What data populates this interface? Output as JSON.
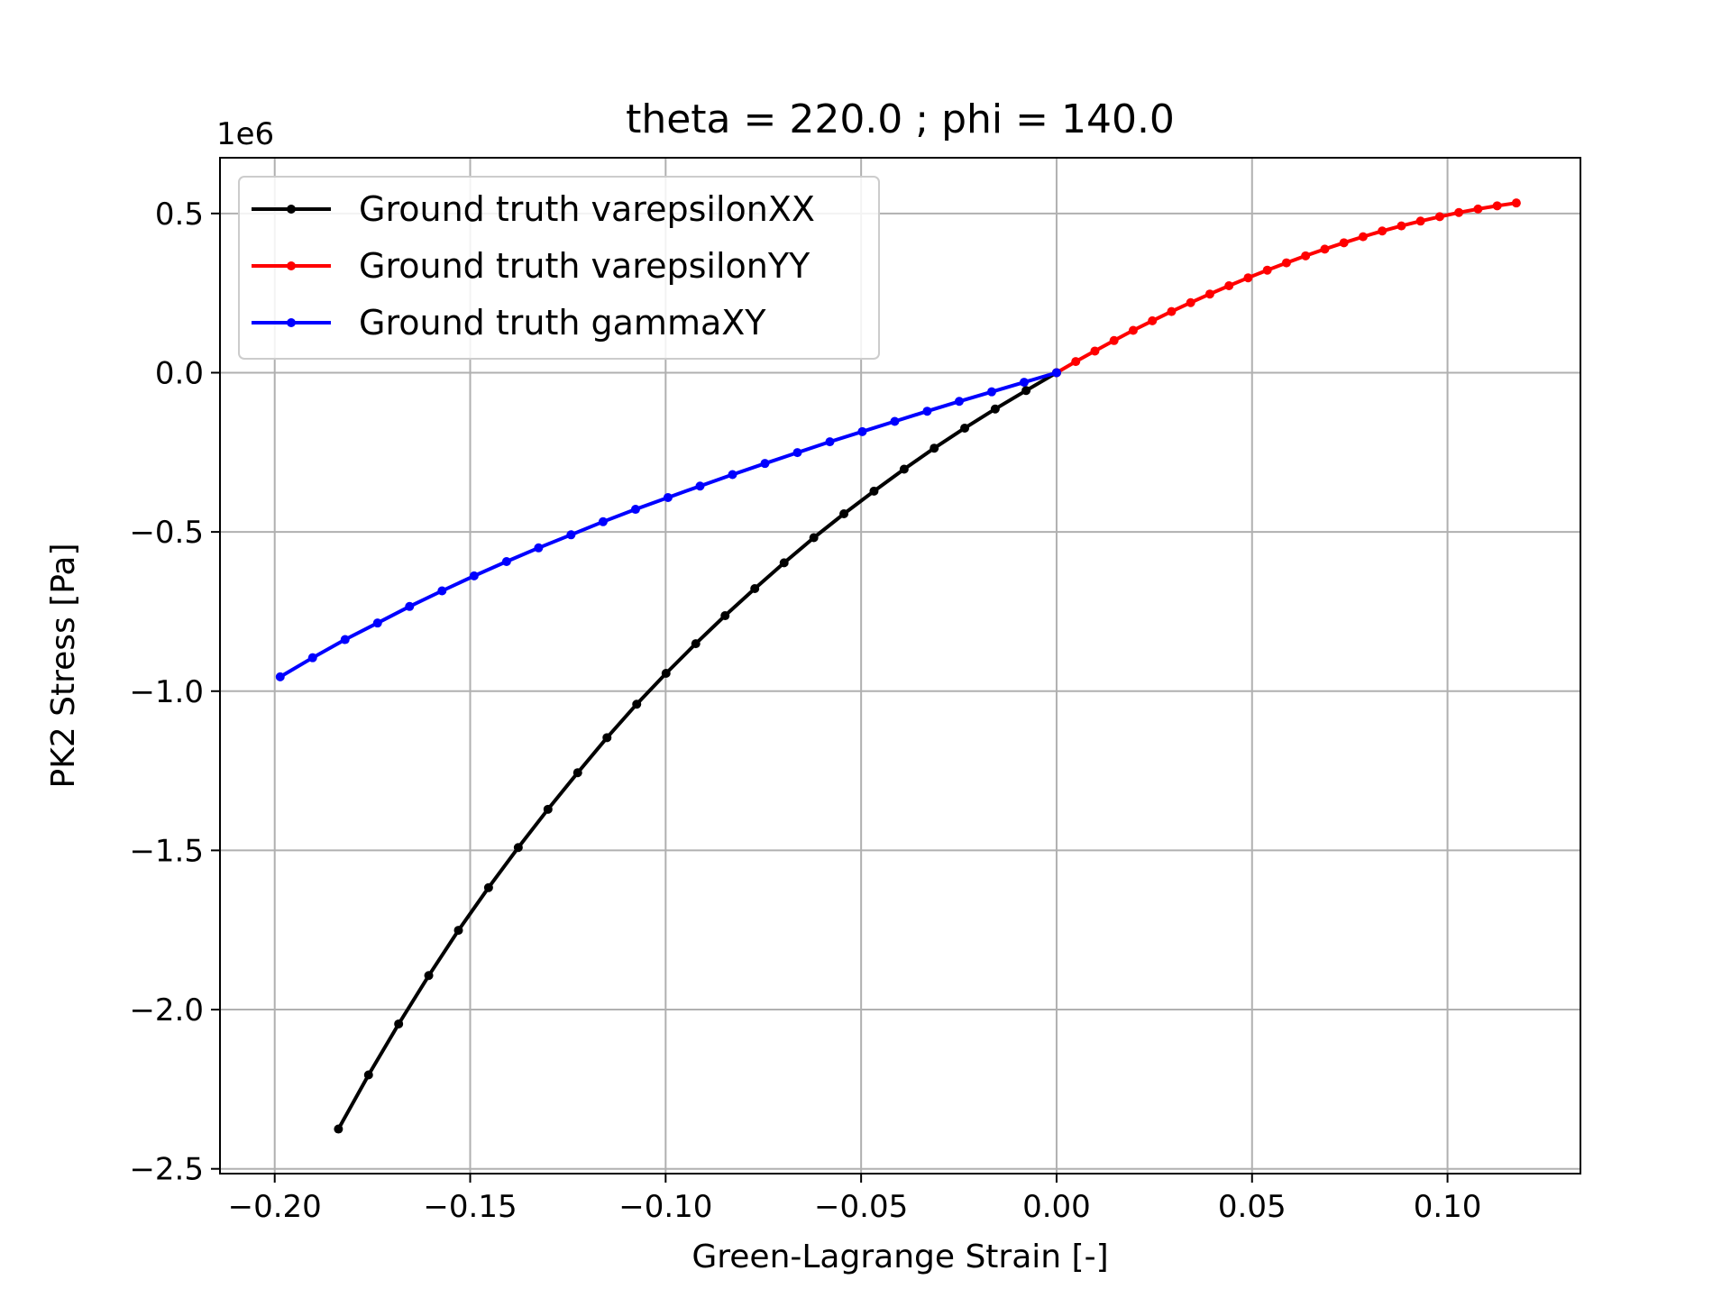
{
  "chart_data": {
    "type": "line",
    "title": "theta = 220.0 ; phi = 140.0",
    "xlabel": "Green-Lagrange Strain [-]",
    "ylabel": "PK2 Stress [Pa]",
    "y_offset_text": "1e6",
    "xlim": [
      -0.214,
      0.134
    ],
    "ylim": [
      -2.515,
      0.675
    ],
    "x_ticks": [
      -0.2,
      -0.15,
      -0.1,
      -0.05,
      0.0,
      0.05,
      0.1
    ],
    "x_tick_labels": [
      "−0.20",
      "−0.15",
      "−0.10",
      "−0.05",
      "0.00",
      "0.05",
      "0.10"
    ],
    "y_ticks": [
      0.5,
      0.0,
      -0.5,
      -1.0,
      -1.5,
      -2.0,
      -2.5
    ],
    "y_tick_labels": [
      "0.5",
      "0.0",
      "−0.5",
      "−1.0",
      "−1.5",
      "−2.0",
      "−2.5"
    ],
    "grid": true,
    "legend_position": "top-left",
    "series": [
      {
        "name": "Ground truth varepsilonXX",
        "color": "#000000",
        "x": [
          -0.1837,
          -0.176,
          -0.1683,
          -0.1606,
          -0.153,
          -0.1453,
          -0.1377,
          -0.1301,
          -0.1225,
          -0.115,
          -0.1074,
          -0.0999,
          -0.0923,
          -0.0848,
          -0.0772,
          -0.0697,
          -0.0621,
          -0.0544,
          -0.0467,
          -0.039,
          -0.0313,
          -0.0235,
          -0.0157,
          -0.0078,
          0.0
        ],
        "y": [
          -2.375,
          -2.205,
          -2.045,
          -1.893,
          -1.751,
          -1.617,
          -1.491,
          -1.371,
          -1.256,
          -1.146,
          -1.041,
          -0.944,
          -0.851,
          -0.763,
          -0.678,
          -0.597,
          -0.518,
          -0.443,
          -0.372,
          -0.303,
          -0.237,
          -0.174,
          -0.114,
          -0.056,
          0.0
        ]
      },
      {
        "name": "Ground truth varepsilonYY",
        "color": "#ff0000",
        "x": [
          0.0,
          0.0049,
          0.0098,
          0.0147,
          0.0196,
          0.0245,
          0.0294,
          0.0343,
          0.0392,
          0.0441,
          0.049,
          0.0539,
          0.0588,
          0.0637,
          0.0686,
          0.0735,
          0.0784,
          0.0833,
          0.0882,
          0.0931,
          0.098,
          0.1029,
          0.1078,
          0.1127,
          0.1176
        ],
        "y": [
          0.0,
          0.035,
          0.068,
          0.101,
          0.133,
          0.163,
          0.192,
          0.22,
          0.247,
          0.273,
          0.298,
          0.322,
          0.345,
          0.367,
          0.388,
          0.408,
          0.427,
          0.445,
          0.461,
          0.476,
          0.49,
          0.503,
          0.514,
          0.524,
          0.533
        ]
      },
      {
        "name": "Ground truth gammaXY",
        "color": "#0000ff",
        "x": [
          -0.1986,
          -0.1903,
          -0.182,
          -0.1737,
          -0.1655,
          -0.1572,
          -0.149,
          -0.1407,
          -0.1325,
          -0.1242,
          -0.116,
          -0.1077,
          -0.0994,
          -0.0912,
          -0.0829,
          -0.0746,
          -0.0663,
          -0.058,
          -0.0497,
          -0.0414,
          -0.0331,
          -0.0249,
          -0.0166,
          -0.0083,
          0.0
        ],
        "y": [
          -0.955,
          -0.895,
          -0.838,
          -0.786,
          -0.734,
          -0.685,
          -0.638,
          -0.593,
          -0.55,
          -0.509,
          -0.468,
          -0.429,
          -0.392,
          -0.356,
          -0.32,
          -0.285,
          -0.251,
          -0.217,
          -0.185,
          -0.153,
          -0.121,
          -0.09,
          -0.06,
          -0.03,
          0.0
        ]
      }
    ]
  }
}
